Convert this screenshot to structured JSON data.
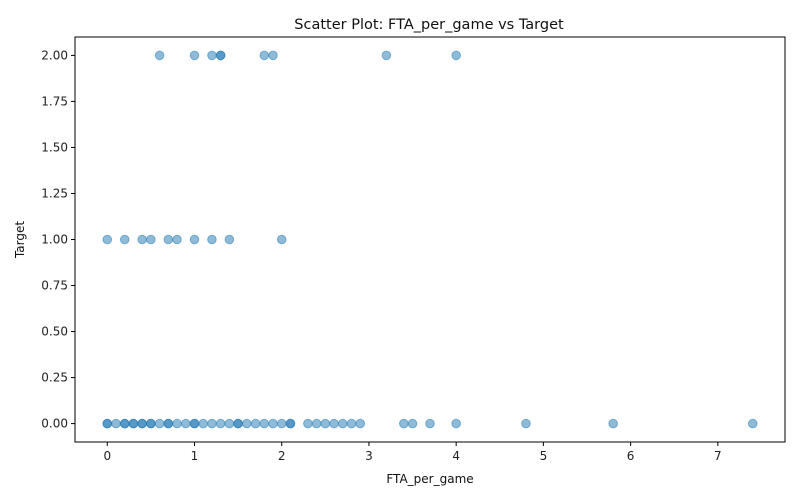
{
  "chart_data": {
    "type": "scatter",
    "title": "Scatter Plot: FTA_per_game vs Target",
    "xlabel": "FTA_per_game",
    "ylabel": "Target",
    "xlim": [
      -0.37,
      7.77
    ],
    "ylim": [
      -0.1,
      2.1
    ],
    "xticks": [
      0,
      1,
      2,
      3,
      4,
      5,
      6,
      7
    ],
    "xtick_labels": [
      "0",
      "1",
      "2",
      "3",
      "4",
      "5",
      "6",
      "7"
    ],
    "yticks": [
      0,
      0.25,
      0.5,
      0.75,
      1.0,
      1.25,
      1.5,
      1.75,
      2.0
    ],
    "ytick_labels": [
      "0.00",
      "0.25",
      "0.50",
      "0.75",
      "1.00",
      "1.25",
      "1.50",
      "1.75",
      "2.00"
    ],
    "grid": false,
    "marker_color": "#1f77b4",
    "marker_alpha": 0.5,
    "series": [
      {
        "points": [
          [
            0.6,
            2
          ],
          [
            1.0,
            2
          ],
          [
            1.2,
            2
          ],
          [
            1.3,
            2
          ],
          [
            1.3,
            2
          ],
          [
            1.8,
            2
          ],
          [
            1.9,
            2
          ],
          [
            3.2,
            2
          ],
          [
            4.0,
            2
          ],
          [
            0.0,
            1
          ],
          [
            0.2,
            1
          ],
          [
            0.4,
            1
          ],
          [
            0.5,
            1
          ],
          [
            0.7,
            1
          ],
          [
            0.8,
            1
          ],
          [
            1.0,
            1
          ],
          [
            1.2,
            1
          ],
          [
            1.4,
            1
          ],
          [
            2.0,
            1
          ],
          [
            0.0,
            0
          ],
          [
            0.0,
            0
          ],
          [
            0.1,
            0
          ],
          [
            0.2,
            0
          ],
          [
            0.2,
            0
          ],
          [
            0.3,
            0
          ],
          [
            0.3,
            0
          ],
          [
            0.4,
            0
          ],
          [
            0.4,
            0
          ],
          [
            0.5,
            0
          ],
          [
            0.5,
            0
          ],
          [
            0.6,
            0
          ],
          [
            0.7,
            0
          ],
          [
            0.7,
            0
          ],
          [
            0.8,
            0
          ],
          [
            0.9,
            0
          ],
          [
            1.0,
            0
          ],
          [
            1.0,
            0
          ],
          [
            1.1,
            0
          ],
          [
            1.2,
            0
          ],
          [
            1.3,
            0
          ],
          [
            1.4,
            0
          ],
          [
            1.5,
            0
          ],
          [
            1.5,
            0
          ],
          [
            1.6,
            0
          ],
          [
            1.7,
            0
          ],
          [
            1.8,
            0
          ],
          [
            1.9,
            0
          ],
          [
            2.0,
            0
          ],
          [
            2.1,
            0
          ],
          [
            2.1,
            0
          ],
          [
            2.3,
            0
          ],
          [
            2.4,
            0
          ],
          [
            2.5,
            0
          ],
          [
            2.6,
            0
          ],
          [
            2.7,
            0
          ],
          [
            2.8,
            0
          ],
          [
            2.9,
            0
          ],
          [
            3.4,
            0
          ],
          [
            3.5,
            0
          ],
          [
            3.7,
            0
          ],
          [
            4.0,
            0
          ],
          [
            4.8,
            0
          ],
          [
            5.8,
            0
          ],
          [
            7.4,
            0
          ]
        ]
      }
    ]
  }
}
